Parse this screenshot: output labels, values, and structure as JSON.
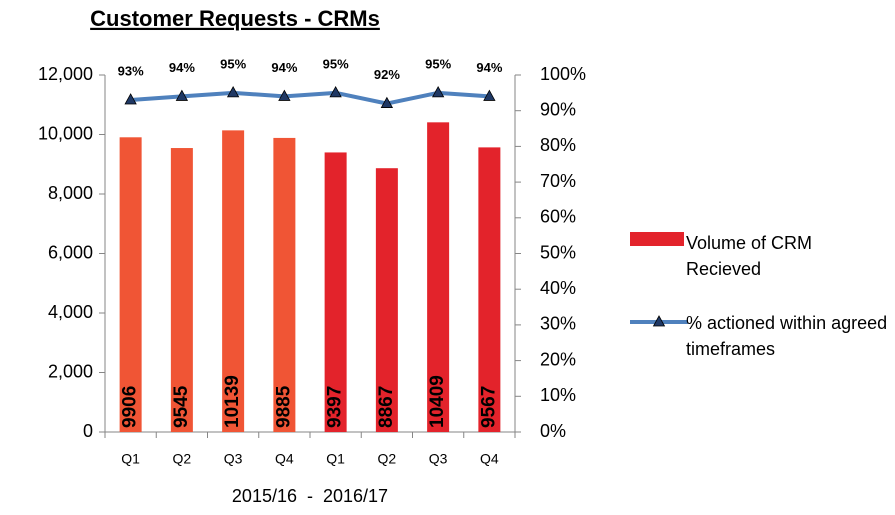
{
  "chart_data": {
    "type": "bar_line",
    "title": "Customer Requests - CRMs",
    "x_label": "2015/16  -  2016/17",
    "categories": [
      "Q1",
      "Q2",
      "Q3",
      "Q4",
      "Q1",
      "Q2",
      "Q3",
      "Q4"
    ],
    "series": [
      {
        "name": "Volume of CRM Recieved",
        "type": "bar",
        "color": "#e3232b",
        "colors": [
          "#f05535",
          "#f05535",
          "#f05535",
          "#f05535",
          "#e3232b",
          "#e3232b",
          "#e3232b",
          "#e3232b"
        ],
        "values": [
          9906,
          9545,
          10139,
          9885,
          9397,
          8867,
          10409,
          9567
        ]
      },
      {
        "name": "% actioned within agreed timeframes",
        "type": "line",
        "axis": "y2",
        "color": "#4f81bd",
        "values": [
          93,
          94,
          95,
          94,
          95,
          92,
          95,
          94
        ],
        "value_labels": [
          "93%",
          "94%",
          "95%",
          "94%",
          "95%",
          "92%",
          "95%",
          "94%"
        ]
      }
    ],
    "ylim": [
      0,
      12000
    ],
    "yticks": [
      0,
      {
        "value": 2000,
        "label": "2,000"
      },
      {
        "value": 4000,
        "label": "4,000"
      },
      {
        "value": 6000,
        "label": "6,000"
      },
      {
        "value": 8000,
        "label": "8,000"
      },
      {
        "value": 10000,
        "label": "10,000"
      },
      {
        "value": 12000,
        "label": "12,000"
      }
    ],
    "y2lim": [
      0,
      100
    ],
    "y2ticks": [
      {
        "value": 0,
        "label": "0%"
      },
      {
        "value": 10,
        "label": "10%"
      },
      {
        "value": 20,
        "label": "20%"
      },
      {
        "value": 30,
        "label": "30%"
      },
      {
        "value": 40,
        "label": "40%"
      },
      {
        "value": 50,
        "label": "50%"
      },
      {
        "value": 60,
        "label": "60%"
      },
      {
        "value": 70,
        "label": "70%"
      },
      {
        "value": 80,
        "label": "80%"
      },
      {
        "value": 90,
        "label": "90%"
      },
      {
        "value": 100,
        "label": "100%"
      }
    ],
    "legend": "right"
  }
}
